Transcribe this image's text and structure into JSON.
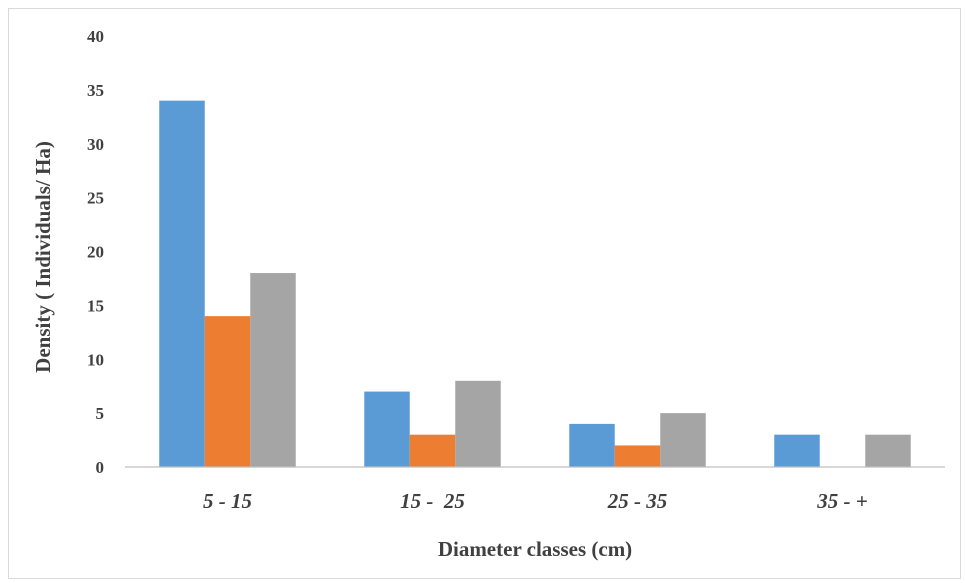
{
  "chart_data": {
    "type": "bar",
    "categories": [
      "5 - 15",
      "15 -  25",
      "25 - 35",
      "35 - +"
    ],
    "series": [
      {
        "values": [
          34,
          7,
          4,
          3
        ],
        "color": "#5b9bd5"
      },
      {
        "values": [
          14,
          3,
          2,
          0
        ],
        "color": "#ed7d31"
      },
      {
        "values": [
          18,
          8,
          5,
          3
        ],
        "color": "#a5a5a5"
      }
    ],
    "xlabel": "Diameter classes (cm)",
    "ylabel": "Density ( Individuals/  Ha)",
    "ylim": [
      0,
      40
    ],
    "yticks": [
      "0",
      "5",
      "10",
      "15",
      "20",
      "25",
      "30",
      "35",
      "40"
    ],
    "grid": false,
    "legend": "none"
  }
}
